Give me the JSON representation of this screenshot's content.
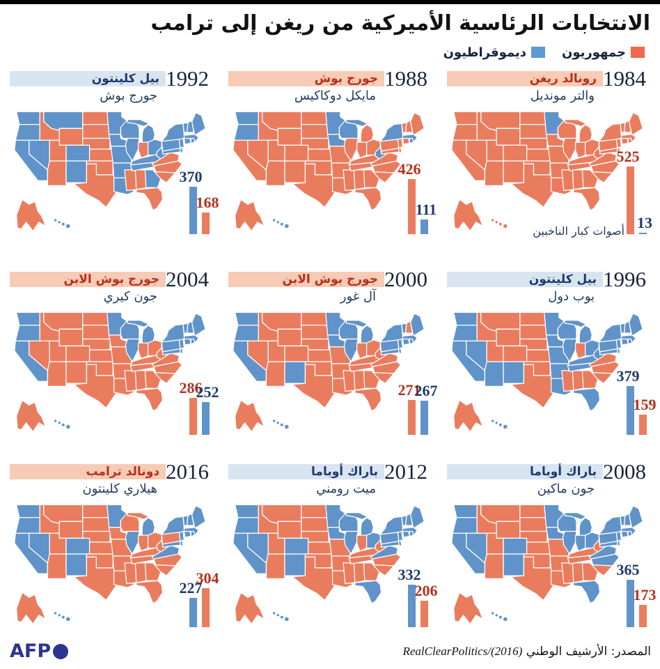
{
  "chart_data": {
    "type": "choropleth-map-grid",
    "title": "الانتخابات الرئاسية الأميركية من ريغن إلى ترامب",
    "legend": {
      "republicans": "جمهوريون",
      "democrats": "ديموقراطيون"
    },
    "electoral_votes_label": "أصوات كبار الناخبين",
    "elections": [
      {
        "year": "1984",
        "winner": "رونالد ريغن",
        "loser": "والتر مونديل",
        "winner_party": "rep",
        "electoral_votes": {
          "rep": 525,
          "dem": 13
        },
        "bar_order": [
          "rep",
          "dem"
        ],
        "note": true,
        "dem_states": [
          "MN"
        ]
      },
      {
        "year": "1988",
        "winner": "جورج بوش",
        "loser": "مايكل دوكاكيس",
        "winner_party": "rep",
        "electoral_votes": {
          "rep": 426,
          "dem": 111
        },
        "bar_order": [
          "rep",
          "dem"
        ],
        "dem_states": [
          "WA",
          "OR",
          "MN",
          "WI",
          "IA",
          "WV",
          "NY",
          "MA",
          "RI",
          "HI"
        ]
      },
      {
        "year": "1992",
        "winner": "بيل كلينتون",
        "loser": "جورج بوش",
        "winner_party": "dem",
        "electoral_votes": {
          "rep": 168,
          "dem": 370
        },
        "bar_order": [
          "dem",
          "rep"
        ],
        "dem_states": [
          "WA",
          "OR",
          "CA",
          "NV",
          "NM",
          "CO",
          "MT",
          "MN",
          "IA",
          "WI",
          "IL",
          "MO",
          "AR",
          "LA",
          "TN",
          "KY",
          "WV",
          "OH",
          "MI",
          "PA",
          "NY",
          "VT",
          "ME",
          "NH",
          "MA",
          "RI",
          "CT",
          "NJ",
          "DE",
          "MD",
          "GA",
          "HI"
        ]
      },
      {
        "year": "1996",
        "winner": "بيل كلينتون",
        "loser": "بوب دول",
        "winner_party": "dem",
        "electoral_votes": {
          "rep": 159,
          "dem": 379
        },
        "bar_order": [
          "dem",
          "rep"
        ],
        "dem_states": [
          "WA",
          "OR",
          "CA",
          "NV",
          "AZ",
          "NM",
          "MN",
          "IA",
          "WI",
          "IL",
          "MO",
          "AR",
          "LA",
          "TN",
          "KY",
          "WV",
          "OH",
          "MI",
          "PA",
          "NY",
          "VT",
          "ME",
          "NH",
          "MA",
          "RI",
          "CT",
          "NJ",
          "DE",
          "MD",
          "FL",
          "HI"
        ]
      },
      {
        "year": "2000",
        "winner": "جورج بوش الابن",
        "loser": "آل غور",
        "winner_party": "rep",
        "electoral_votes": {
          "rep": 271,
          "dem": 267
        },
        "bar_order": [
          "rep",
          "dem"
        ],
        "dem_states": [
          "WA",
          "OR",
          "CA",
          "NM",
          "MN",
          "IA",
          "WI",
          "IL",
          "MI",
          "PA",
          "NY",
          "VT",
          "ME",
          "MA",
          "RI",
          "CT",
          "NJ",
          "DE",
          "MD",
          "HI"
        ]
      },
      {
        "year": "2004",
        "winner": "جورج بوش الابن",
        "loser": "جون كيري",
        "winner_party": "rep",
        "electoral_votes": {
          "rep": 286,
          "dem": 252
        },
        "bar_order": [
          "rep",
          "dem"
        ],
        "dem_states": [
          "WA",
          "OR",
          "CA",
          "MN",
          "WI",
          "IL",
          "MI",
          "PA",
          "NY",
          "VT",
          "ME",
          "NH",
          "MA",
          "RI",
          "CT",
          "NJ",
          "DE",
          "MD",
          "HI"
        ]
      },
      {
        "year": "2008",
        "winner": "باراك أوباما",
        "loser": "جون ماكين",
        "winner_party": "dem",
        "electoral_votes": {
          "rep": 173,
          "dem": 365
        },
        "bar_order": [
          "dem",
          "rep"
        ],
        "dem_states": [
          "WA",
          "OR",
          "CA",
          "NV",
          "NM",
          "CO",
          "MN",
          "IA",
          "WI",
          "IL",
          "IN",
          "MI",
          "OH",
          "PA",
          "NY",
          "VT",
          "ME",
          "NH",
          "MA",
          "RI",
          "CT",
          "NJ",
          "DE",
          "MD",
          "VA",
          "NC",
          "FL",
          "HI"
        ]
      },
      {
        "year": "2012",
        "winner": "باراك أوباما",
        "loser": "ميت رومني",
        "winner_party": "dem",
        "electoral_votes": {
          "rep": 206,
          "dem": 332
        },
        "bar_order": [
          "dem",
          "rep"
        ],
        "dem_states": [
          "WA",
          "OR",
          "CA",
          "NV",
          "NM",
          "CO",
          "MN",
          "IA",
          "WI",
          "IL",
          "MI",
          "OH",
          "PA",
          "NY",
          "VT",
          "ME",
          "NH",
          "MA",
          "RI",
          "CT",
          "NJ",
          "DE",
          "MD",
          "VA",
          "FL",
          "HI"
        ]
      },
      {
        "year": "2016",
        "winner": "دونالد ترامب",
        "loser": "هيلاري كلينتون",
        "winner_party": "rep",
        "electoral_votes": {
          "rep": 304,
          "dem": 227
        },
        "bar_order": [
          "dem",
          "rep"
        ],
        "dem_states": [
          "WA",
          "OR",
          "CA",
          "NV",
          "NM",
          "CO",
          "MN",
          "IL",
          "MI",
          "NY",
          "VT",
          "ME",
          "NH",
          "MA",
          "RI",
          "CT",
          "NJ",
          "DE",
          "MD",
          "VA",
          "HI"
        ]
      }
    ]
  },
  "colors": {
    "rep": "#EA7C5E",
    "dem": "#6093C9",
    "legend_rep": "#F3674A",
    "legend_dem": "#5C99D6",
    "chip_rep": "#F7CBB5",
    "chip_dem": "#D9E4F1",
    "rep_text": "#B5301C",
    "dem_text": "#1E3A6B",
    "ink": "#1F3A5F",
    "afp": "#2D3490"
  },
  "footer": {
    "logo": "AFP",
    "source_ar": "المصدر: الأرشيف الوطني",
    "source_en": "RealClearPolitics/(2016)"
  }
}
